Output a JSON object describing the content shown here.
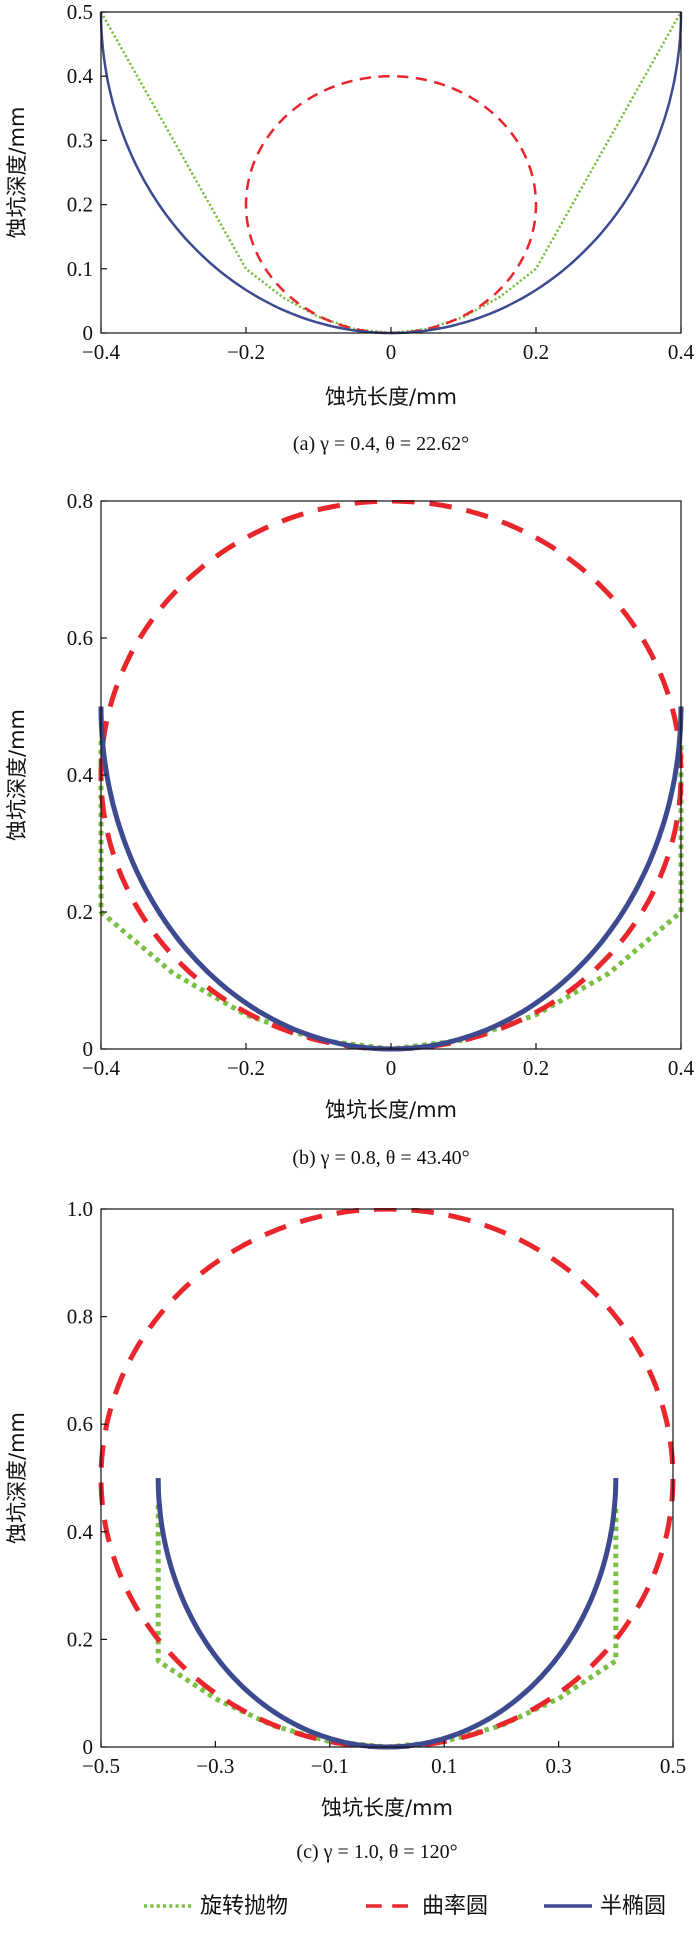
{
  "chart_data": [
    {
      "type": "line",
      "panel": "a",
      "xlabel": "蚀坑长度/mm",
      "ylabel": "蚀坑深度/mm",
      "caption": "(a) γ = 0.4, θ = 22.62°",
      "xlim": [
        -0.4,
        0.4
      ],
      "ylim": [
        0,
        0.5
      ],
      "xticks": [
        "−0.4",
        "−0.2",
        "0",
        "0.2",
        "0.4"
      ],
      "yticks": [
        "0",
        "0.1",
        "0.2",
        "0.3",
        "0.4",
        "0.5"
      ],
      "series": [
        {
          "name": "旋转抛物",
          "x": [
            -0.4,
            -0.2,
            -0.15,
            -0.1,
            -0.05,
            0,
            0.05,
            0.1,
            0.15,
            0.2,
            0.4
          ],
          "y": [
            0.5,
            0.1,
            0.056,
            0.025,
            0.006,
            0,
            0.006,
            0.025,
            0.056,
            0.1,
            0.5
          ]
        },
        {
          "name": "曲率圆",
          "circle": {
            "cx": 0,
            "cy": 0.2,
            "r": 0.2
          }
        },
        {
          "name": "半椭圆",
          "ellipse": {
            "cx": 0,
            "cy": 0.5,
            "a": 0.4,
            "b": 0.5
          },
          "x": [
            -0.4,
            0.4
          ],
          "y": [
            0.5,
            0.5
          ]
        }
      ]
    },
    {
      "type": "line",
      "panel": "b",
      "xlabel": "蚀坑长度/mm",
      "ylabel": "蚀坑深度/mm",
      "caption": "(b) γ = 0.8, θ = 43.40°",
      "xlim": [
        -0.4,
        0.4
      ],
      "ylim": [
        0,
        0.8
      ],
      "xticks": [
        "−0.4",
        "−0.2",
        "0",
        "0.2",
        "0.4"
      ],
      "yticks": [
        "0",
        "0.2",
        "0.4",
        "0.6",
        "0.8"
      ],
      "series": [
        {
          "name": "旋转抛物",
          "x": [
            -0.4,
            -0.4,
            -0.3,
            -0.2,
            -0.1,
            0,
            0.1,
            0.2,
            0.3,
            0.4,
            0.4
          ],
          "y": [
            0.45,
            0.2,
            0.11,
            0.05,
            0.013,
            0,
            0.013,
            0.05,
            0.11,
            0.2,
            0.45
          ]
        },
        {
          "name": "曲率圆",
          "circle": {
            "cx": 0,
            "cy": 0.4,
            "r": 0.4
          }
        },
        {
          "name": "半椭圆",
          "ellipse": {
            "cx": 0,
            "cy": 0.5,
            "a": 0.4,
            "b": 0.5
          },
          "x": [
            -0.4,
            0.4
          ],
          "y": [
            0.5,
            0.5
          ]
        }
      ]
    },
    {
      "type": "line",
      "panel": "c",
      "xlabel": "蚀坑长度/mm",
      "ylabel": "蚀坑深度/mm",
      "caption": "(c) γ = 1.0, θ = 120°",
      "xlim": [
        -0.5,
        0.5
      ],
      "ylim": [
        0,
        1.0
      ],
      "xticks": [
        "−0.5",
        "−0.3",
        "−0.1",
        "0.1",
        "0.3",
        "0.5"
      ],
      "yticks": [
        "0",
        "0.2",
        "0.4",
        "0.6",
        "0.8",
        "1.0"
      ],
      "series": [
        {
          "name": "旋转抛物",
          "x": [
            -0.4,
            -0.4,
            -0.3,
            -0.2,
            -0.1,
            0,
            0.1,
            0.2,
            0.3,
            0.4,
            0.4
          ],
          "y": [
            0.45,
            0.16,
            0.09,
            0.04,
            0.01,
            0,
            0.01,
            0.04,
            0.09,
            0.16,
            0.45
          ]
        },
        {
          "name": "曲率圆",
          "circle": {
            "cx": 0,
            "cy": 0.5,
            "r": 0.5
          }
        },
        {
          "name": "半椭圆",
          "ellipse": {
            "cx": 0,
            "cy": 0.5,
            "a": 0.4,
            "b": 0.5
          },
          "x": [
            -0.4,
            0.4
          ],
          "y": [
            0.5,
            0.5
          ]
        }
      ]
    }
  ],
  "legend": {
    "position": "bottom",
    "items": [
      {
        "label": "旋转抛物",
        "color": "#7bc043",
        "style": "dotted"
      },
      {
        "label": "曲率圆",
        "color": "#e8262c",
        "style": "dashed"
      },
      {
        "label": "半椭圆",
        "color": "#3d4a8f",
        "style": "solid"
      }
    ]
  }
}
